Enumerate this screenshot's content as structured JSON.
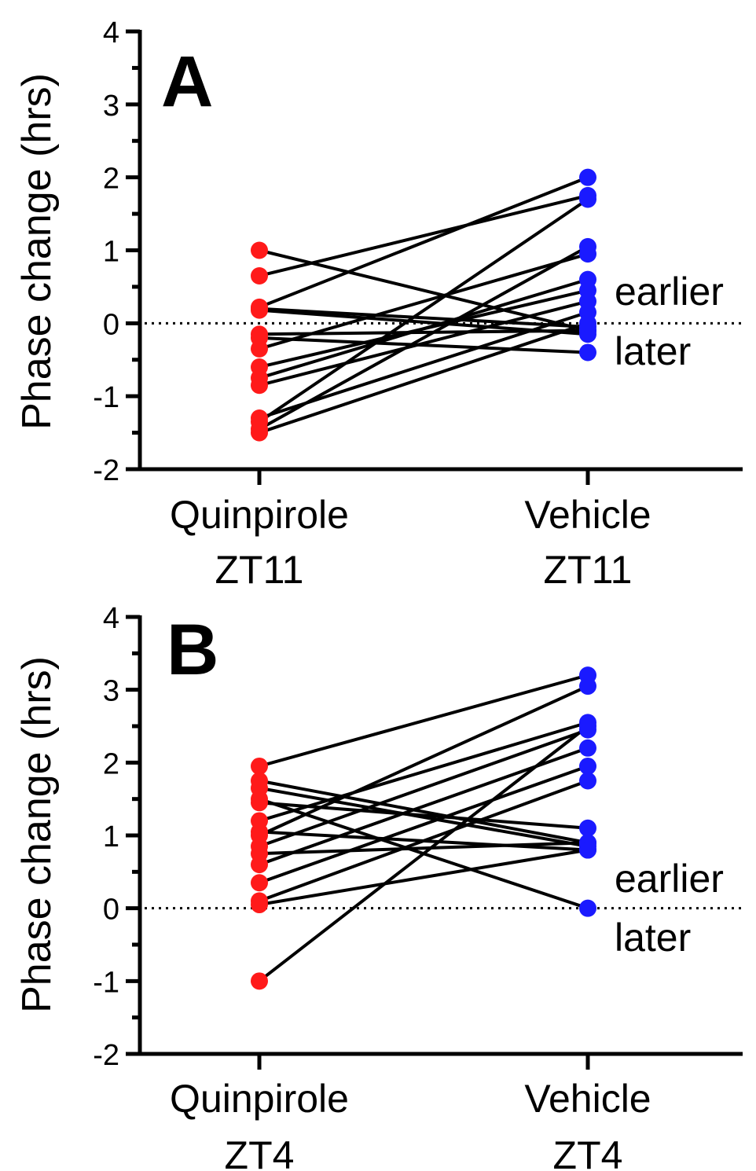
{
  "chart_data": [
    {
      "type": "paired-dot",
      "panel_label": "A",
      "ylabel": "Phase change (hrs)",
      "ylim": [
        -2,
        4
      ],
      "yticks": [
        "-2",
        "-1",
        "0",
        "1",
        "2",
        "3",
        "4"
      ],
      "categories": [
        {
          "line1": "Quinpirole",
          "line2": "ZT11"
        },
        {
          "line1": "Vehicle",
          "line2": "ZT11"
        }
      ],
      "annotations": {
        "above": "earlier",
        "below": "later"
      },
      "colors": {
        "drug": "#ff1a1a",
        "vehicle": "#1a1aff",
        "line": "#000000"
      },
      "pairs": [
        [
          1.0,
          -0.1
        ],
        [
          0.65,
          1.75
        ],
        [
          0.22,
          2.0
        ],
        [
          0.2,
          -0.05
        ],
        [
          0.18,
          -0.15
        ],
        [
          -0.15,
          -0.1
        ],
        [
          -0.2,
          -0.4
        ],
        [
          -0.35,
          0.95
        ],
        [
          -0.6,
          0.45
        ],
        [
          -0.75,
          0.6
        ],
        [
          -0.85,
          0.3
        ],
        [
          -1.3,
          0.15
        ],
        [
          -1.35,
          1.7
        ],
        [
          -1.45,
          1.05
        ],
        [
          -1.5,
          0.0
        ]
      ]
    },
    {
      "type": "paired-dot",
      "panel_label": "B",
      "ylabel": "Phase change (hrs)",
      "ylim": [
        -2,
        4
      ],
      "yticks": [
        "-2",
        "-1",
        "0",
        "1",
        "2",
        "3",
        "4"
      ],
      "categories": [
        {
          "line1": "Quinpirole",
          "line2": "ZT4"
        },
        {
          "line1": "Vehicle",
          "line2": "ZT4"
        }
      ],
      "annotations": {
        "above": "earlier",
        "below": "later"
      },
      "colors": {
        "drug": "#ff1a1a",
        "vehicle": "#1a1aff",
        "line": "#000000"
      },
      "pairs": [
        [
          1.95,
          3.2
        ],
        [
          1.75,
          0.9
        ],
        [
          1.65,
          0.85
        ],
        [
          1.5,
          0.0
        ],
        [
          1.45,
          1.1
        ],
        [
          1.2,
          2.55
        ],
        [
          1.05,
          0.8
        ],
        [
          1.0,
          3.05
        ],
        [
          0.85,
          2.45
        ],
        [
          0.75,
          0.9
        ],
        [
          0.6,
          2.2
        ],
        [
          0.35,
          1.95
        ],
        [
          0.1,
          1.75
        ],
        [
          0.05,
          0.8
        ],
        [
          -1.0,
          2.5
        ]
      ]
    }
  ]
}
